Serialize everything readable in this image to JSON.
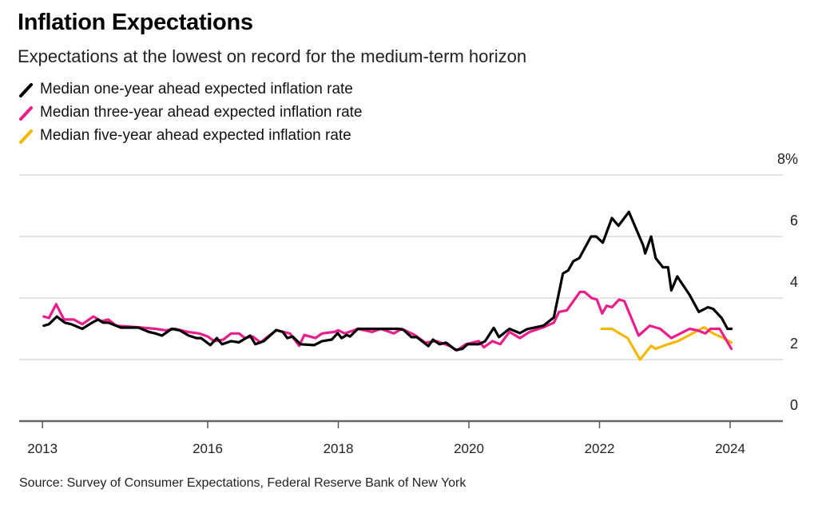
{
  "chart_data": {
    "type": "line",
    "title": "Inflation Expectations",
    "subtitle": "Expectations at the lowest on record for the medium-term horizon",
    "source": "Source: Survey of Consumer Expectations, Federal Reserve Bank of New York",
    "xlim": [
      2013.45,
      2024.05
    ],
    "ylim": [
      0,
      8
    ],
    "y_ticks": [
      {
        "value": 0,
        "label": "0"
      },
      {
        "value": 2,
        "label": "2"
      },
      {
        "value": 4,
        "label": "4"
      },
      {
        "value": 6,
        "label": "6"
      },
      {
        "value": 8,
        "label": "8%"
      }
    ],
    "x_ticks": [
      {
        "value": 2013.47,
        "label": "2013"
      },
      {
        "value": 2016,
        "label": "2016"
      },
      {
        "value": 2018,
        "label": "2018"
      },
      {
        "value": 2020,
        "label": "2020"
      },
      {
        "value": 2022,
        "label": "2022"
      },
      {
        "value": 2024,
        "label": "2024"
      }
    ],
    "grid": "horizontal",
    "legend_position": "top-left",
    "series": [
      {
        "name": "Median one-year ahead expected inflation rate",
        "color": "#000000",
        "points": [
          [
            2013.49,
            3.1
          ],
          [
            2013.57,
            3.15
          ],
          [
            2013.69,
            3.4
          ],
          [
            2013.81,
            3.2
          ],
          [
            2013.91,
            3.15
          ],
          [
            2014.08,
            3.0
          ],
          [
            2014.23,
            3.2
          ],
          [
            2014.32,
            3.3
          ],
          [
            2014.4,
            3.2
          ],
          [
            2014.48,
            3.2
          ],
          [
            2014.67,
            3.04
          ],
          [
            2014.94,
            3.04
          ],
          [
            2015.1,
            2.9
          ],
          [
            2015.2,
            2.85
          ],
          [
            2015.3,
            2.78
          ],
          [
            2015.45,
            3.0
          ],
          [
            2015.57,
            2.95
          ],
          [
            2015.71,
            2.78
          ],
          [
            2015.83,
            2.7
          ],
          [
            2015.9,
            2.7
          ],
          [
            2016.04,
            2.47
          ],
          [
            2016.14,
            2.7
          ],
          [
            2016.22,
            2.5
          ],
          [
            2016.36,
            2.6
          ],
          [
            2016.48,
            2.56
          ],
          [
            2016.65,
            2.78
          ],
          [
            2016.73,
            2.5
          ],
          [
            2016.86,
            2.6
          ],
          [
            2017.05,
            2.96
          ],
          [
            2017.15,
            2.9
          ],
          [
            2017.22,
            2.7
          ],
          [
            2017.3,
            2.75
          ],
          [
            2017.42,
            2.5
          ],
          [
            2017.63,
            2.47
          ],
          [
            2017.75,
            2.6
          ],
          [
            2017.9,
            2.65
          ],
          [
            2017.99,
            2.86
          ],
          [
            2018.05,
            2.7
          ],
          [
            2018.13,
            2.8
          ],
          [
            2018.18,
            2.75
          ],
          [
            2018.3,
            3.0
          ],
          [
            2018.93,
            3.0
          ],
          [
            2019.0,
            2.96
          ],
          [
            2019.12,
            2.73
          ],
          [
            2019.2,
            2.73
          ],
          [
            2019.38,
            2.44
          ],
          [
            2019.45,
            2.65
          ],
          [
            2019.55,
            2.5
          ],
          [
            2019.65,
            2.55
          ],
          [
            2019.8,
            2.31
          ],
          [
            2019.9,
            2.35
          ],
          [
            2019.98,
            2.5
          ],
          [
            2020.15,
            2.5
          ],
          [
            2020.25,
            2.6
          ],
          [
            2020.38,
            3.03
          ],
          [
            2020.46,
            2.73
          ],
          [
            2020.62,
            3.0
          ],
          [
            2020.78,
            2.86
          ],
          [
            2020.89,
            2.99
          ],
          [
            2021.14,
            3.1
          ],
          [
            2021.3,
            3.37
          ],
          [
            2021.44,
            4.8
          ],
          [
            2021.52,
            4.9
          ],
          [
            2021.6,
            5.2
          ],
          [
            2021.69,
            5.3
          ],
          [
            2021.87,
            6.0
          ],
          [
            2021.95,
            6.0
          ],
          [
            2022.05,
            5.8
          ],
          [
            2022.19,
            6.6
          ],
          [
            2022.29,
            6.35
          ],
          [
            2022.45,
            6.8
          ],
          [
            2022.55,
            6.3
          ],
          [
            2022.67,
            5.7
          ],
          [
            2022.7,
            5.45
          ],
          [
            2022.79,
            6.0
          ],
          [
            2022.86,
            5.3
          ],
          [
            2022.97,
            5.0
          ],
          [
            2023.05,
            5.0
          ],
          [
            2023.1,
            4.25
          ],
          [
            2023.19,
            4.7
          ],
          [
            2023.38,
            4.1
          ],
          [
            2023.52,
            3.55
          ],
          [
            2023.66,
            3.7
          ],
          [
            2023.74,
            3.65
          ],
          [
            2023.87,
            3.35
          ],
          [
            2023.96,
            3.0
          ],
          [
            2024.02,
            3.0
          ]
        ]
      },
      {
        "name": "Median three-year ahead expected inflation rate",
        "color": "#e91e8c",
        "points": [
          [
            2013.49,
            3.4
          ],
          [
            2013.57,
            3.35
          ],
          [
            2013.68,
            3.8
          ],
          [
            2013.8,
            3.3
          ],
          [
            2013.95,
            3.3
          ],
          [
            2014.08,
            3.15
          ],
          [
            2014.25,
            3.4
          ],
          [
            2014.37,
            3.25
          ],
          [
            2014.48,
            3.3
          ],
          [
            2014.6,
            3.1
          ],
          [
            2014.94,
            3.05
          ],
          [
            2015.2,
            3.0
          ],
          [
            2015.36,
            2.95
          ],
          [
            2015.5,
            3.0
          ],
          [
            2015.7,
            2.9
          ],
          [
            2015.87,
            2.85
          ],
          [
            2016.0,
            2.75
          ],
          [
            2016.1,
            2.6
          ],
          [
            2016.24,
            2.65
          ],
          [
            2016.36,
            2.85
          ],
          [
            2016.48,
            2.85
          ],
          [
            2016.57,
            2.7
          ],
          [
            2016.69,
            2.75
          ],
          [
            2016.81,
            2.55
          ],
          [
            2016.89,
            2.7
          ],
          [
            2017.05,
            2.95
          ],
          [
            2017.26,
            2.85
          ],
          [
            2017.4,
            2.45
          ],
          [
            2017.48,
            2.8
          ],
          [
            2017.65,
            2.7
          ],
          [
            2017.75,
            2.85
          ],
          [
            2017.94,
            2.9
          ],
          [
            2018.0,
            2.95
          ],
          [
            2018.1,
            2.85
          ],
          [
            2018.24,
            2.95
          ],
          [
            2018.3,
            3.0
          ],
          [
            2018.52,
            2.9
          ],
          [
            2018.65,
            3.0
          ],
          [
            2018.85,
            2.85
          ],
          [
            2018.97,
            3.0
          ],
          [
            2019.17,
            2.8
          ],
          [
            2019.33,
            2.55
          ],
          [
            2019.5,
            2.6
          ],
          [
            2019.7,
            2.45
          ],
          [
            2019.82,
            2.3
          ],
          [
            2019.95,
            2.5
          ],
          [
            2020.15,
            2.6
          ],
          [
            2020.23,
            2.4
          ],
          [
            2020.36,
            2.6
          ],
          [
            2020.48,
            2.5
          ],
          [
            2020.55,
            2.7
          ],
          [
            2020.62,
            2.9
          ],
          [
            2020.78,
            2.7
          ],
          [
            2020.93,
            2.9
          ],
          [
            2021.14,
            3.05
          ],
          [
            2021.3,
            3.2
          ],
          [
            2021.38,
            3.55
          ],
          [
            2021.5,
            3.6
          ],
          [
            2021.7,
            4.2
          ],
          [
            2021.77,
            4.2
          ],
          [
            2021.88,
            4.0
          ],
          [
            2021.96,
            3.95
          ],
          [
            2022.04,
            3.5
          ],
          [
            2022.11,
            3.75
          ],
          [
            2022.19,
            3.7
          ],
          [
            2022.3,
            3.95
          ],
          [
            2022.38,
            3.9
          ],
          [
            2022.6,
            2.78
          ],
          [
            2022.77,
            3.1
          ],
          [
            2022.93,
            3.0
          ],
          [
            2023.1,
            2.7
          ],
          [
            2023.38,
            3.0
          ],
          [
            2023.5,
            2.95
          ],
          [
            2023.62,
            2.85
          ],
          [
            2023.7,
            3.0
          ],
          [
            2023.84,
            3.0
          ],
          [
            2024.02,
            2.35
          ]
        ]
      },
      {
        "name": "Median five-year ahead expected inflation rate",
        "color": "#f5b800",
        "points": [
          [
            2022.03,
            3.0
          ],
          [
            2022.19,
            3.0
          ],
          [
            2022.43,
            2.7
          ],
          [
            2022.62,
            2.0
          ],
          [
            2022.79,
            2.45
          ],
          [
            2022.86,
            2.35
          ],
          [
            2023.05,
            2.5
          ],
          [
            2023.2,
            2.6
          ],
          [
            2023.38,
            2.8
          ],
          [
            2023.6,
            3.05
          ],
          [
            2023.74,
            2.85
          ],
          [
            2023.9,
            2.7
          ],
          [
            2024.02,
            2.55
          ]
        ]
      }
    ]
  }
}
